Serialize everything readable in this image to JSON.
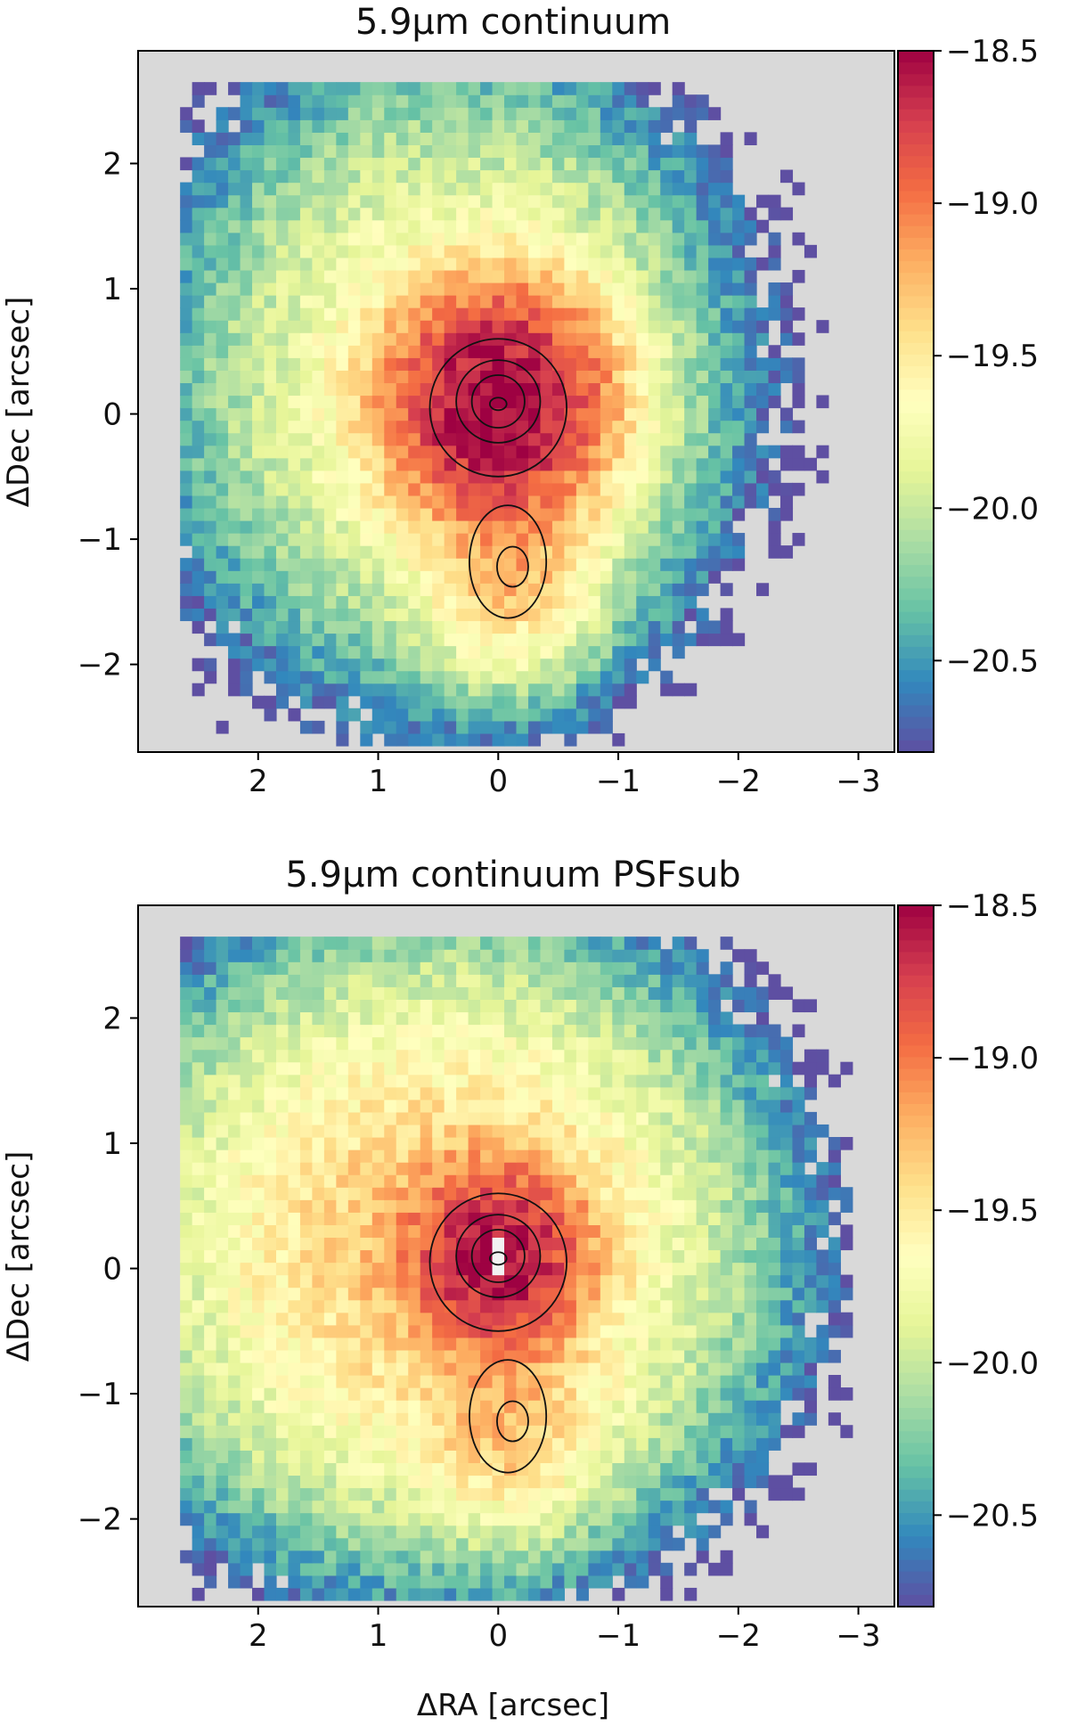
{
  "chart_data": [
    {
      "type": "heatmap",
      "title": "5.9μm continuum",
      "xlabel": "",
      "ylabel": "ΔDec [arcsec]",
      "xlim": [
        3.0,
        -3.3
      ],
      "ylim": [
        -2.7,
        2.9
      ],
      "xticks": [
        2,
        1,
        0,
        -1,
        -2,
        -3
      ],
      "xtick_labels": [
        "2",
        "1",
        "0",
        "−1",
        "−2",
        "−3"
      ],
      "yticks": [
        2,
        1,
        0,
        -1,
        -2
      ],
      "ytick_labels": [
        "2",
        "1",
        "0",
        "−1",
        "−2"
      ],
      "colorbar": {
        "range": [
          -20.8,
          -18.5
        ],
        "ticks": [
          -18.5,
          -19.0,
          -19.5,
          -20.0,
          -20.5
        ],
        "tick_labels": [
          "−18.5",
          "−19.0",
          "−19.5",
          "−20.0",
          "−20.5"
        ],
        "colormap": "Spectral_r"
      },
      "background_color": "#d9d9d9",
      "pixel_size_arcsec": 0.1,
      "emission_components": [
        {
          "ra": 0.0,
          "dec": 0.1,
          "peak": -18.5,
          "sigma_ra": 0.5,
          "sigma_dec": 0.5
        },
        {
          "ra": -0.1,
          "dec": -1.25,
          "peak": -19.35,
          "sigma_ra": 0.4,
          "sigma_dec": 0.45
        },
        {
          "ra": 0.4,
          "dec": 0.3,
          "peak": -19.6,
          "sigma_ra": 1.2,
          "sigma_dec": 1.3
        }
      ],
      "contours": [
        {
          "center": [
            0.0,
            0.05
          ],
          "rx": 0.57,
          "ry": 0.55
        },
        {
          "center": [
            0.0,
            0.1
          ],
          "rx": 0.35,
          "ry": 0.33
        },
        {
          "center": [
            0.0,
            0.1
          ],
          "rx": 0.22,
          "ry": 0.21
        },
        {
          "center": [
            0.0,
            0.08
          ],
          "rx": 0.07,
          "ry": 0.05
        },
        {
          "center": [
            -0.08,
            -1.18
          ],
          "rx": 0.32,
          "ry": 0.45
        },
        {
          "center": [
            -0.12,
            -1.22
          ],
          "rx": 0.13,
          "ry": 0.16
        }
      ]
    },
    {
      "type": "heatmap",
      "title": "5.9μm continuum PSFsub",
      "xlabel": "ΔRA [arcsec]",
      "ylabel": "ΔDec [arcsec]",
      "xlim": [
        3.0,
        -3.3
      ],
      "ylim": [
        -2.7,
        2.9
      ],
      "xticks": [
        2,
        1,
        0,
        -1,
        -2,
        -3
      ],
      "xtick_labels": [
        "2",
        "1",
        "0",
        "−1",
        "−2",
        "−3"
      ],
      "yticks": [
        2,
        1,
        0,
        -1,
        -2
      ],
      "ytick_labels": [
        "2",
        "1",
        "0",
        "−1",
        "−2"
      ],
      "colorbar": {
        "range": [
          -20.8,
          -18.5
        ],
        "ticks": [
          -18.5,
          -19.0,
          -19.5,
          -20.0,
          -20.5
        ],
        "tick_labels": [
          "−18.5",
          "−19.0",
          "−19.5",
          "−20.0",
          "−20.5"
        ],
        "colormap": "Spectral_r"
      },
      "background_color": "#d9d9d9",
      "pixel_size_arcsec": 0.1,
      "emission_components": [
        {
          "ra": 0.0,
          "dec": 0.1,
          "peak": -18.6,
          "sigma_ra": 0.4,
          "sigma_dec": 0.4
        },
        {
          "ra": -0.1,
          "dec": -1.25,
          "peak": -19.45,
          "sigma_ra": 0.4,
          "sigma_dec": 0.45
        },
        {
          "ra": 0.5,
          "dec": 0.2,
          "peak": -19.3,
          "sigma_ra": 1.3,
          "sigma_dec": 1.2
        }
      ],
      "contours": [
        {
          "center": [
            0.0,
            0.05
          ],
          "rx": 0.57,
          "ry": 0.55
        },
        {
          "center": [
            0.0,
            0.1
          ],
          "rx": 0.35,
          "ry": 0.33
        },
        {
          "center": [
            0.0,
            0.1
          ],
          "rx": 0.22,
          "ry": 0.21
        },
        {
          "center": [
            0.0,
            0.08
          ],
          "rx": 0.07,
          "ry": 0.05
        },
        {
          "center": [
            -0.08,
            -1.18
          ],
          "rx": 0.32,
          "ry": 0.45
        },
        {
          "center": [
            -0.12,
            -1.22
          ],
          "rx": 0.13,
          "ry": 0.16
        }
      ]
    }
  ]
}
